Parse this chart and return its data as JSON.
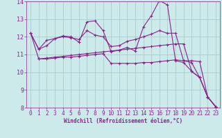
{
  "xlabel": "Windchill (Refroidissement éolien,°C)",
  "background_color": "#cceaea",
  "grid_color": "#aacccc",
  "line_color": "#882288",
  "xlim": [
    0,
    23
  ],
  "ylim": [
    8,
    14
  ],
  "yticks": [
    8,
    9,
    10,
    11,
    12,
    13,
    14
  ],
  "xticks": [
    0,
    1,
    2,
    3,
    4,
    5,
    6,
    7,
    8,
    9,
    10,
    11,
    12,
    13,
    14,
    15,
    16,
    17,
    18,
    19,
    20,
    21,
    22,
    23
  ],
  "series1_x": [
    0,
    1,
    2,
    3,
    4,
    5,
    6,
    7,
    8,
    9,
    10,
    11,
    12,
    13,
    14,
    15,
    16,
    17,
    18,
    19,
    20,
    21,
    22,
    23
  ],
  "series1": [
    12.2,
    11.3,
    11.8,
    11.9,
    12.05,
    12.0,
    11.7,
    12.85,
    12.9,
    12.35,
    11.15,
    11.25,
    11.4,
    11.2,
    12.55,
    13.2,
    14.05,
    13.8,
    10.65,
    10.55,
    10.05,
    9.7,
    8.6,
    8.05
  ],
  "series2_x": [
    0,
    1,
    2,
    3,
    4,
    5,
    6,
    7,
    8,
    9,
    10,
    11,
    12,
    13,
    14,
    15,
    16,
    17,
    18,
    19,
    20,
    21,
    22,
    23
  ],
  "series2": [
    12.2,
    11.3,
    11.5,
    11.9,
    12.0,
    11.95,
    11.85,
    12.35,
    12.1,
    12.0,
    11.45,
    11.5,
    11.75,
    11.85,
    12.0,
    12.15,
    12.35,
    12.2,
    12.2,
    10.65,
    10.55,
    9.7,
    8.6,
    8.05
  ],
  "series3_x": [
    1,
    2,
    3,
    4,
    5,
    6,
    7,
    8,
    9,
    10,
    11,
    12,
    13,
    14,
    15,
    16,
    17,
    18,
    19,
    20,
    21,
    22,
    23
  ],
  "series3": [
    10.75,
    10.75,
    10.8,
    10.85,
    10.85,
    10.9,
    10.95,
    11.0,
    11.05,
    10.5,
    10.5,
    10.5,
    10.5,
    10.55,
    10.55,
    10.6,
    10.65,
    10.7,
    10.65,
    10.65,
    10.6,
    8.6,
    8.05
  ],
  "series4_x": [
    0,
    1,
    2,
    3,
    4,
    5,
    6,
    7,
    8,
    9,
    10,
    11,
    12,
    13,
    14,
    15,
    16,
    17,
    18,
    19,
    20,
    21,
    22,
    23
  ],
  "series4": [
    12.2,
    10.75,
    10.8,
    10.85,
    10.9,
    10.95,
    11.0,
    11.05,
    11.1,
    11.15,
    11.2,
    11.25,
    11.3,
    11.35,
    11.4,
    11.45,
    11.5,
    11.55,
    11.6,
    11.6,
    10.05,
    9.7,
    8.6,
    8.05
  ]
}
